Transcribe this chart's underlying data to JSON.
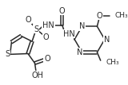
{
  "bg_color": "#ffffff",
  "line_color": "#2a2a2a",
  "line_width": 1.1,
  "font_size": 7.0,
  "figsize": [
    1.6,
    1.07
  ],
  "dpi": 100,
  "xlim": [
    0,
    160
  ],
  "ylim": [
    0,
    107
  ]
}
